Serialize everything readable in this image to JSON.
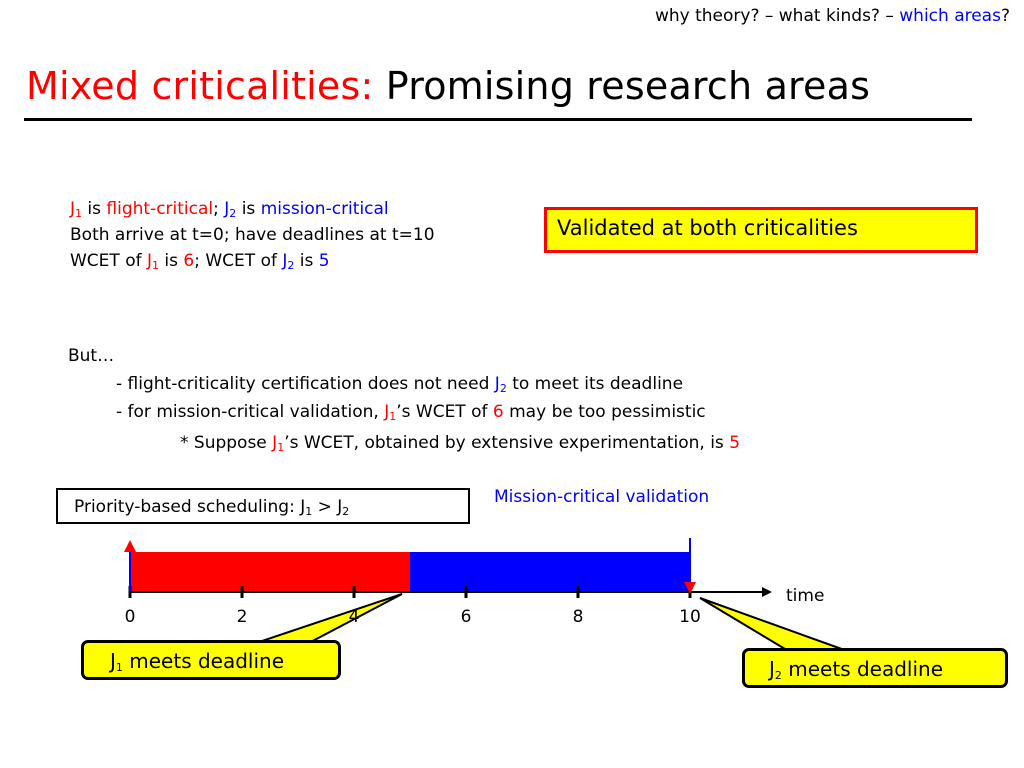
{
  "breadcrumb": {
    "part1": "why theory? – what kinds? – ",
    "part2": "which areas",
    "part3": "?"
  },
  "title": {
    "red_part": "Mixed criticalities:",
    "black_part": "Promising research areas"
  },
  "facts": {
    "line1": {
      "j": "J",
      "j1_sub": "1",
      "is1": " is ",
      "flight": "flight-critical",
      "semi": "; ",
      "j2": "J",
      "j2_sub": "2",
      "is2": " is ",
      "mission": "mission-critical"
    },
    "line2": "Both arrive at t=0; have deadlines at t=10",
    "line3": {
      "wcet1": "WCET of ",
      "j1": "J",
      "j1_sub": "1",
      "is1": " is ",
      "v1": "6",
      "wcet2": "; WCET of ",
      "j2": "J",
      "j2_sub": "2",
      "is2": " is ",
      "v2": "5"
    }
  },
  "validated_box": "Validated at both criticalities",
  "but": {
    "intro": "But…",
    "item1": {
      "a": "- flight-criticality certification does not need ",
      "j": "J",
      "sub": "2",
      "b": " to meet its deadline"
    },
    "item2": {
      "a": "- for mission-critical validation, ",
      "j": "J",
      "sub": "1",
      "b": "’s WCET of ",
      "v": "6",
      "c": " may be too pessimistic"
    },
    "note": {
      "a": "* Suppose ",
      "j": "J",
      "sub": "1",
      "b": "’s WCET, obtained by extensive experimentation, is ",
      "v": "5"
    }
  },
  "priority_box": {
    "a": "Priority-based scheduling: J",
    "s1": "1",
    "b": " > J",
    "s2": "2"
  },
  "mission_label": "Mission-critical validation",
  "time_label": "time",
  "ticks": [
    "0",
    "2",
    "4",
    "6",
    "8",
    "10"
  ],
  "schedule": [
    {
      "job": "J1",
      "start": 0,
      "end": 5,
      "color": "#ff0000"
    },
    {
      "job": "J2",
      "start": 5,
      "end": 10,
      "color": "#0000ff"
    }
  ],
  "callouts": {
    "j1": {
      "a": "J",
      "sub": "1",
      "b": " meets deadline"
    },
    "j2": {
      "a": "J",
      "sub": "2",
      "b": " meets deadline"
    }
  },
  "colors": {
    "red": "#ff0000",
    "blue": "#0000ff",
    "yellow": "#ffff00"
  }
}
